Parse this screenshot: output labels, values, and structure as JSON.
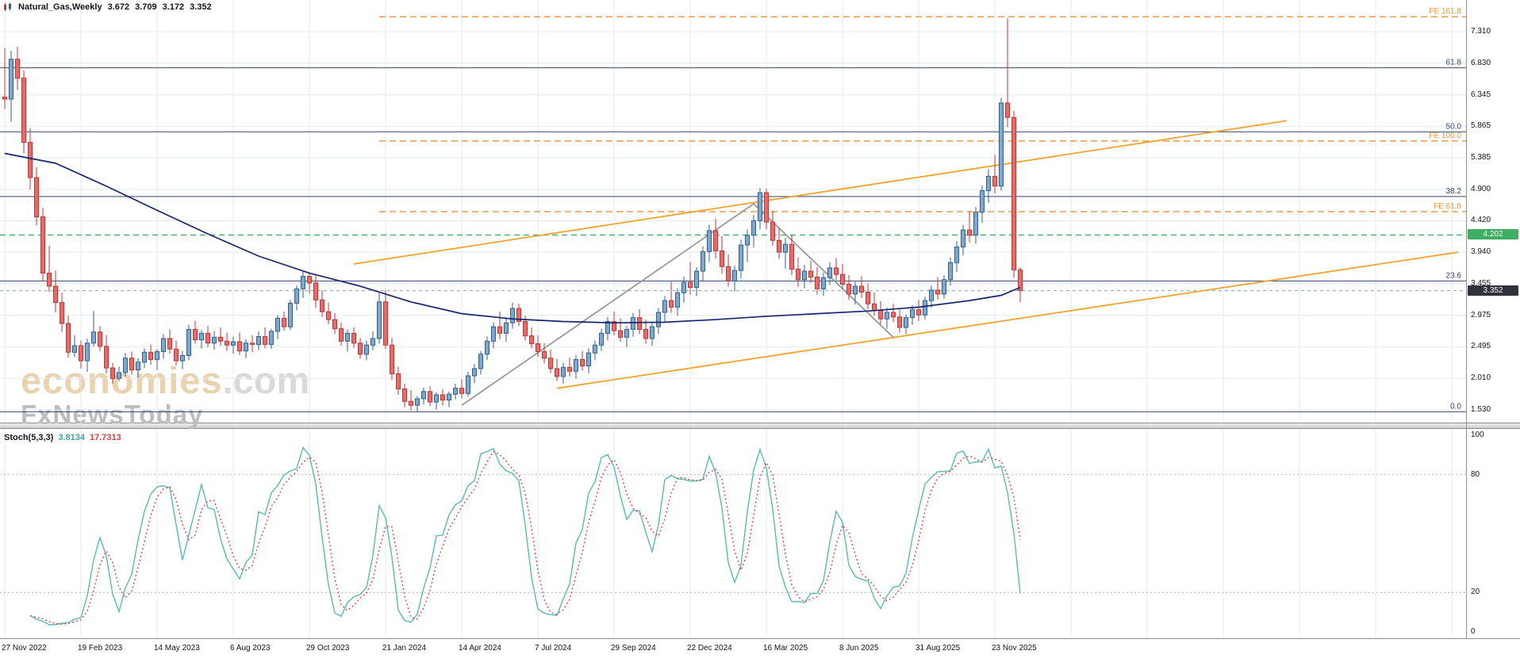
{
  "header": {
    "symbol": "Natural_Gas,Weekly",
    "open": "3.672",
    "high": "3.709",
    "low": "3.172",
    "close": "3.352"
  },
  "watermark": {
    "brand": "economies",
    "tld": ".com",
    "line2": "FxNewsToday"
  },
  "colors": {
    "bull": "#7fa8cf",
    "bull_border": "#2f5f96",
    "bear": "#ea6a6a",
    "bear_border": "#bf3535",
    "ma": "#18266e",
    "fib": "#35466a",
    "fe": "#e6953c",
    "green": "#44ad68",
    "trend_orange": "#efa42e",
    "trend_gray": "#999999",
    "stoch_k": "#58bab4",
    "stoch_d": "#d94848",
    "grid": "#e3ebf3",
    "level_dotted": "#bcbcbc",
    "current_line": "#7fa3bd",
    "badge_green": "#3fae63",
    "badge_dark": "#31313d"
  },
  "chart_data": {
    "type": "candlestick",
    "symbol": "Natural_Gas",
    "timeframe": "Weekly",
    "ylim": [
      1.335,
      7.795
    ],
    "grid": true,
    "price_ticks": [
      "7.310",
      "6.830",
      "6.345",
      "5.865",
      "5.385",
      "4.900",
      "4.420",
      "3.940",
      "3.455",
      "2.975",
      "2.495",
      "2.010",
      "1.530"
    ],
    "date_labels": [
      {
        "idx": 0,
        "label": "27 Nov 2022"
      },
      {
        "idx": 12,
        "label": "19 Feb 2023"
      },
      {
        "idx": 24,
        "label": "14 May 2023"
      },
      {
        "idx": 36,
        "label": "6 Aug 2023"
      },
      {
        "idx": 48,
        "label": "29 Oct 2023"
      },
      {
        "idx": 60,
        "label": "21 Jan 2024"
      },
      {
        "idx": 72,
        "label": "14 Apr 2024"
      },
      {
        "idx": 84,
        "label": "7 Jul 2024"
      },
      {
        "idx": 96,
        "label": "29 Sep 2024"
      },
      {
        "idx": 108,
        "label": "22 Dec 2024"
      },
      {
        "idx": 120,
        "label": "16 Mar 2025"
      },
      {
        "idx": 132,
        "label": "8 Jun 2025"
      },
      {
        "idx": 144,
        "label": "31 Aug 2025"
      },
      {
        "idx": 156,
        "label": "23 Nov 2025"
      }
    ],
    "candles": [
      [
        6.31,
        7.06,
        6.13,
        6.28
      ],
      [
        6.28,
        7.02,
        5.93,
        6.89
      ],
      [
        6.89,
        7.08,
        6.42,
        6.6
      ],
      [
        6.6,
        6.72,
        5.45,
        5.62
      ],
      [
        5.62,
        5.83,
        4.9,
        5.08
      ],
      [
        5.08,
        5.24,
        4.35,
        4.48
      ],
      [
        4.48,
        4.62,
        3.5,
        3.62
      ],
      [
        3.62,
        4.04,
        3.33,
        3.42
      ],
      [
        3.42,
        3.66,
        3.02,
        3.17
      ],
      [
        3.17,
        3.32,
        2.72,
        2.85
      ],
      [
        2.85,
        2.97,
        2.33,
        2.41
      ],
      [
        2.41,
        2.67,
        2.34,
        2.51
      ],
      [
        2.51,
        2.59,
        2.16,
        2.28
      ],
      [
        2.28,
        2.62,
        2.11,
        2.55
      ],
      [
        2.55,
        3.04,
        2.5,
        2.72
      ],
      [
        2.72,
        2.81,
        2.43,
        2.5
      ],
      [
        2.5,
        2.67,
        2.09,
        2.17
      ],
      [
        2.17,
        2.25,
        1.93,
        2.01
      ],
      [
        2.01,
        2.19,
        1.97,
        2.1
      ],
      [
        2.1,
        2.4,
        2.04,
        2.32
      ],
      [
        2.32,
        2.42,
        2.07,
        2.14
      ],
      [
        2.14,
        2.32,
        2.02,
        2.26
      ],
      [
        2.26,
        2.47,
        2.17,
        2.41
      ],
      [
        2.41,
        2.53,
        2.22,
        2.3
      ],
      [
        2.3,
        2.46,
        2.14,
        2.42
      ],
      [
        2.42,
        2.69,
        2.31,
        2.62
      ],
      [
        2.62,
        2.76,
        2.39,
        2.46
      ],
      [
        2.46,
        2.59,
        2.21,
        2.28
      ],
      [
        2.28,
        2.43,
        2.15,
        2.36
      ],
      [
        2.36,
        2.83,
        2.29,
        2.76
      ],
      [
        2.76,
        2.89,
        2.54,
        2.6
      ],
      [
        2.6,
        2.75,
        2.47,
        2.7
      ],
      [
        2.7,
        2.81,
        2.49,
        2.55
      ],
      [
        2.55,
        2.73,
        2.45,
        2.64
      ],
      [
        2.64,
        2.79,
        2.51,
        2.58
      ],
      [
        2.58,
        2.71,
        2.43,
        2.52
      ],
      [
        2.52,
        2.65,
        2.39,
        2.57
      ],
      [
        2.57,
        2.71,
        2.37,
        2.43
      ],
      [
        2.43,
        2.61,
        2.32,
        2.55
      ],
      [
        2.55,
        2.67,
        2.41,
        2.53
      ],
      [
        2.53,
        2.73,
        2.44,
        2.65
      ],
      [
        2.65,
        2.79,
        2.47,
        2.53
      ],
      [
        2.53,
        2.77,
        2.46,
        2.73
      ],
      [
        2.73,
        2.98,
        2.61,
        2.93
      ],
      [
        2.93,
        3.03,
        2.74,
        2.8
      ],
      [
        2.8,
        3.21,
        2.75,
        3.16
      ],
      [
        3.16,
        3.43,
        3.05,
        3.38
      ],
      [
        3.38,
        3.64,
        3.24,
        3.57
      ],
      [
        3.57,
        3.62,
        3.31,
        3.47
      ],
      [
        3.47,
        3.6,
        3.09,
        3.21
      ],
      [
        3.21,
        3.36,
        2.95,
        3.03
      ],
      [
        3.03,
        3.17,
        2.84,
        2.91
      ],
      [
        2.91,
        3.01,
        2.69,
        2.77
      ],
      [
        2.77,
        2.86,
        2.51,
        2.58
      ],
      [
        2.58,
        2.76,
        2.42,
        2.7
      ],
      [
        2.7,
        2.79,
        2.48,
        2.55
      ],
      [
        2.55,
        2.63,
        2.31,
        2.38
      ],
      [
        2.38,
        2.59,
        2.29,
        2.52
      ],
      [
        2.52,
        2.73,
        2.44,
        2.62
      ],
      [
        2.62,
        3.32,
        2.54,
        3.18
      ],
      [
        3.18,
        3.36,
        2.46,
        2.52
      ],
      [
        2.52,
        2.63,
        1.99,
        2.08
      ],
      [
        2.08,
        2.19,
        1.76,
        1.85
      ],
      [
        1.85,
        1.93,
        1.57,
        1.66
      ],
      [
        1.66,
        1.83,
        1.52,
        1.6
      ],
      [
        1.6,
        1.74,
        1.5,
        1.7
      ],
      [
        1.7,
        1.87,
        1.61,
        1.81
      ],
      [
        1.81,
        1.89,
        1.59,
        1.65
      ],
      [
        1.65,
        1.8,
        1.54,
        1.76
      ],
      [
        1.76,
        1.85,
        1.6,
        1.68
      ],
      [
        1.68,
        1.81,
        1.57,
        1.77
      ],
      [
        1.77,
        1.93,
        1.69,
        1.86
      ],
      [
        1.86,
        2.0,
        1.71,
        1.78
      ],
      [
        1.78,
        2.11,
        1.73,
        2.05
      ],
      [
        2.05,
        2.23,
        1.94,
        2.16
      ],
      [
        2.16,
        2.43,
        2.07,
        2.38
      ],
      [
        2.38,
        2.65,
        2.29,
        2.58
      ],
      [
        2.58,
        2.87,
        2.47,
        2.8
      ],
      [
        2.8,
        3.03,
        2.61,
        2.7
      ],
      [
        2.7,
        2.93,
        2.57,
        2.86
      ],
      [
        2.86,
        3.17,
        2.77,
        3.08
      ],
      [
        3.08,
        3.15,
        2.81,
        2.88
      ],
      [
        2.88,
        2.97,
        2.59,
        2.66
      ],
      [
        2.66,
        2.79,
        2.47,
        2.54
      ],
      [
        2.54,
        2.67,
        2.34,
        2.42
      ],
      [
        2.42,
        2.55,
        2.24,
        2.32
      ],
      [
        2.32,
        2.45,
        2.09,
        2.16
      ],
      [
        2.16,
        2.31,
        1.97,
        2.04
      ],
      [
        2.04,
        2.25,
        1.93,
        2.18
      ],
      [
        2.18,
        2.33,
        2.04,
        2.12
      ],
      [
        2.12,
        2.37,
        2.01,
        2.3
      ],
      [
        2.3,
        2.43,
        2.13,
        2.2
      ],
      [
        2.2,
        2.47,
        2.09,
        2.4
      ],
      [
        2.4,
        2.59,
        2.29,
        2.52
      ],
      [
        2.52,
        2.77,
        2.43,
        2.7
      ],
      [
        2.7,
        2.95,
        2.59,
        2.88
      ],
      [
        2.88,
        3.03,
        2.67,
        2.74
      ],
      [
        2.74,
        2.93,
        2.57,
        2.64
      ],
      [
        2.64,
        2.81,
        2.49,
        2.76
      ],
      [
        2.76,
        3.01,
        2.65,
        2.94
      ],
      [
        2.94,
        3.07,
        2.69,
        2.76
      ],
      [
        2.76,
        2.91,
        2.54,
        2.62
      ],
      [
        2.62,
        2.87,
        2.51,
        2.8
      ],
      [
        2.8,
        3.09,
        2.69,
        3.02
      ],
      [
        3.02,
        3.27,
        2.87,
        3.2
      ],
      [
        3.2,
        3.49,
        3.01,
        3.1
      ],
      [
        3.1,
        3.39,
        2.97,
        3.32
      ],
      [
        3.32,
        3.57,
        3.17,
        3.48
      ],
      [
        3.48,
        3.79,
        3.29,
        3.4
      ],
      [
        3.4,
        3.71,
        3.27,
        3.65
      ],
      [
        3.65,
        4.03,
        3.49,
        3.95
      ],
      [
        3.95,
        4.36,
        3.79,
        4.27
      ],
      [
        4.27,
        4.45,
        3.84,
        3.96
      ],
      [
        3.96,
        4.19,
        3.61,
        3.72
      ],
      [
        3.72,
        3.91,
        3.41,
        3.5
      ],
      [
        3.5,
        3.73,
        3.34,
        3.66
      ],
      [
        3.66,
        4.13,
        3.54,
        4.05
      ],
      [
        4.05,
        4.29,
        3.79,
        4.2
      ],
      [
        4.2,
        4.51,
        4.01,
        4.42
      ],
      [
        4.42,
        4.92,
        4.29,
        4.85
      ],
      [
        4.85,
        4.91,
        4.29,
        4.4
      ],
      [
        4.4,
        4.57,
        4.04,
        4.12
      ],
      [
        4.12,
        4.31,
        3.84,
        3.94
      ],
      [
        3.94,
        4.16,
        3.69,
        4.06
      ],
      [
        4.06,
        4.21,
        3.59,
        3.68
      ],
      [
        3.68,
        3.86,
        3.41,
        3.52
      ],
      [
        3.52,
        3.75,
        3.39,
        3.65
      ],
      [
        3.65,
        3.81,
        3.47,
        3.56
      ],
      [
        3.56,
        3.71,
        3.29,
        3.38
      ],
      [
        3.38,
        3.63,
        3.27,
        3.55
      ],
      [
        3.55,
        3.79,
        3.44,
        3.7
      ],
      [
        3.7,
        3.85,
        3.51,
        3.6
      ],
      [
        3.6,
        3.76,
        3.37,
        3.45
      ],
      [
        3.45,
        3.59,
        3.21,
        3.3
      ],
      [
        3.3,
        3.49,
        3.14,
        3.42
      ],
      [
        3.42,
        3.57,
        3.24,
        3.33
      ],
      [
        3.33,
        3.46,
        3.07,
        3.15
      ],
      [
        3.15,
        3.33,
        2.97,
        3.05
      ],
      [
        3.05,
        3.19,
        2.84,
        2.92
      ],
      [
        2.92,
        3.09,
        2.77,
        3.02
      ],
      [
        3.02,
        3.15,
        2.87,
        2.95
      ],
      [
        2.95,
        3.06,
        2.71,
        2.79
      ],
      [
        2.79,
        2.99,
        2.69,
        2.94
      ],
      [
        2.94,
        3.13,
        2.83,
        3.06
      ],
      [
        3.06,
        3.21,
        2.89,
        2.98
      ],
      [
        2.98,
        3.26,
        2.91,
        3.2
      ],
      [
        3.2,
        3.43,
        3.09,
        3.36
      ],
      [
        3.36,
        3.56,
        3.21,
        3.3
      ],
      [
        3.3,
        3.59,
        3.23,
        3.52
      ],
      [
        3.52,
        3.86,
        3.43,
        3.78
      ],
      [
        3.78,
        4.11,
        3.64,
        4.02
      ],
      [
        4.02,
        4.36,
        3.89,
        4.28
      ],
      [
        4.28,
        4.56,
        4.09,
        4.2
      ],
      [
        4.2,
        4.63,
        4.07,
        4.55
      ],
      [
        4.55,
        4.96,
        4.39,
        4.88
      ],
      [
        4.88,
        5.21,
        4.69,
        5.1
      ],
      [
        5.1,
        5.43,
        4.84,
        4.95
      ],
      [
        4.95,
        6.3,
        4.88,
        6.22
      ],
      [
        6.22,
        7.52,
        5.85,
        6.0
      ],
      [
        6.0,
        6.1,
        3.55,
        3.67
      ],
      [
        3.672,
        3.709,
        3.172,
        3.352
      ]
    ],
    "ma_points": [
      [
        0,
        5.45
      ],
      [
        8,
        5.3
      ],
      [
        16,
        4.95
      ],
      [
        24,
        4.58
      ],
      [
        32,
        4.22
      ],
      [
        40,
        3.88
      ],
      [
        48,
        3.62
      ],
      [
        56,
        3.42
      ],
      [
        64,
        3.18
      ],
      [
        72,
        3.0
      ],
      [
        80,
        2.92
      ],
      [
        88,
        2.88
      ],
      [
        96,
        2.86
      ],
      [
        104,
        2.87
      ],
      [
        112,
        2.91
      ],
      [
        120,
        2.96
      ],
      [
        128,
        3.0
      ],
      [
        136,
        3.04
      ],
      [
        144,
        3.1
      ],
      [
        152,
        3.2
      ],
      [
        157,
        3.28
      ],
      [
        160,
        3.4
      ]
    ],
    "fib_levels": [
      {
        "label": "61.8",
        "price": 6.76
      },
      {
        "label": "50.0",
        "price": 5.78
      },
      {
        "label": "38.2",
        "price": 4.79
      },
      {
        "label": "23.6",
        "price": 3.5
      },
      {
        "label": "0.0",
        "price": 1.5
      }
    ],
    "fe_levels": [
      {
        "label": "FE 161.8",
        "price": 7.54,
        "start_idx": 59
      },
      {
        "label": "FE 100.0",
        "price": 5.64,
        "start_idx": 59
      },
      {
        "label": "FE 61.8",
        "price": 4.56,
        "start_idx": 59
      }
    ],
    "green_line": {
      "price": 4.202,
      "label": "4.202"
    },
    "current_price": {
      "value": 3.352,
      "label": "3.352"
    },
    "trendlines": [
      {
        "name": "channel-upper",
        "colorKey": "trend_orange",
        "points": [
          [
            55,
            3.76
          ],
          [
            202,
            5.95
          ]
        ]
      },
      {
        "name": "channel-lower",
        "colorKey": "trend_orange",
        "points": [
          [
            87,
            1.86
          ],
          [
            229,
            3.94
          ]
        ]
      },
      {
        "name": "zigzag",
        "colorKey": "trend_gray",
        "points": [
          [
            72,
            1.6
          ],
          [
            118,
            4.68
          ],
          [
            140,
            2.64
          ]
        ]
      }
    ],
    "stoch": {
      "label": "Stoch(5,3,3)",
      "k_value": "3.8134",
      "d_value": "17.7313",
      "k_period": 5,
      "slowing": 3,
      "d_period": 3,
      "levels": [
        80,
        20
      ],
      "axis_labels": [
        {
          "v": 100,
          "label": "100"
        },
        {
          "v": 80,
          "label": "80"
        },
        {
          "v": 20,
          "label": "20"
        },
        {
          "v": 0,
          "label": "0"
        }
      ]
    }
  }
}
